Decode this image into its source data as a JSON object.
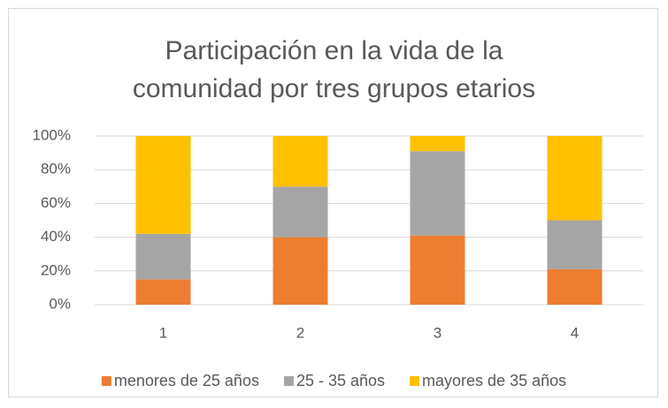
{
  "chart_data": {
    "type": "stacked_bar_percent",
    "title": "Participación en la vida de la comunidad por tres grupos etarios",
    "categories": [
      "1",
      "2",
      "3",
      "4"
    ],
    "series": [
      {
        "name": "menores de 25 años",
        "color": "#ed7d31",
        "values": [
          15,
          40,
          41,
          21
        ]
      },
      {
        "name": "25 - 35 años",
        "color": "#a5a5a5",
        "values": [
          27,
          30,
          50,
          29
        ]
      },
      {
        "name": "mayores de 35 años",
        "color": "#ffc000",
        "values": [
          58,
          30,
          9,
          50
        ]
      }
    ],
    "ylim": [
      0,
      100
    ],
    "yticks": [
      {
        "value": 0,
        "label": "0%"
      },
      {
        "value": 20,
        "label": "20%"
      },
      {
        "value": 40,
        "label": "40%"
      },
      {
        "value": 60,
        "label": "60%"
      },
      {
        "value": 80,
        "label": "80%"
      },
      {
        "value": 100,
        "label": "100%"
      }
    ],
    "grid": true,
    "legend": "bottom"
  }
}
